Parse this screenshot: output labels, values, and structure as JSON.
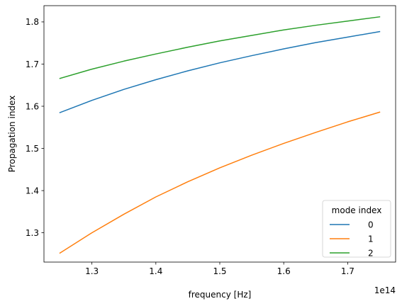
{
  "chart_data": {
    "type": "line",
    "title": "",
    "xlabel": "frequency [Hz]",
    "ylabel": "Propagation index",
    "x_offset_label": "1e14",
    "xlim": [
      1.225,
      1.775
    ],
    "ylim": [
      1.2305,
      1.8385
    ],
    "x_ticks": [
      1.3,
      1.4,
      1.5,
      1.6,
      1.7
    ],
    "x_tick_labels": [
      "1.3",
      "1.4",
      "1.5",
      "1.6",
      "1.7"
    ],
    "y_ticks": [
      1.3,
      1.4,
      1.5,
      1.6,
      1.7,
      1.8
    ],
    "y_tick_labels": [
      "1.3",
      "1.4",
      "1.5",
      "1.6",
      "1.7",
      "1.8"
    ],
    "grid": false,
    "legend": {
      "title": "mode index",
      "position": "lower right"
    },
    "x": [
      1.25,
      1.3,
      1.35,
      1.4,
      1.45,
      1.5,
      1.55,
      1.6,
      1.65,
      1.7,
      1.75
    ],
    "series": [
      {
        "name": "0",
        "color": "#1f77b4",
        "values": [
          1.585,
          1.614,
          1.64,
          1.663,
          1.684,
          1.703,
          1.72,
          1.736,
          1.751,
          1.764,
          1.777
        ]
      },
      {
        "name": "1",
        "color": "#ff7f0e",
        "values": [
          1.252,
          1.3,
          1.344,
          1.385,
          1.421,
          1.454,
          1.484,
          1.512,
          1.538,
          1.563,
          1.586
        ]
      },
      {
        "name": "2",
        "color": "#2ca02c",
        "values": [
          1.666,
          1.688,
          1.707,
          1.724,
          1.74,
          1.755,
          1.768,
          1.781,
          1.792,
          1.802,
          1.812
        ]
      }
    ]
  }
}
